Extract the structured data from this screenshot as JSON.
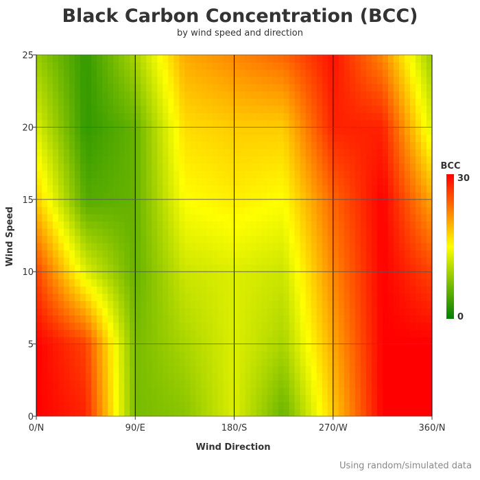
{
  "title": "Black Carbon Concentration (BCC)",
  "subtitle": "by wind speed and direction",
  "footnote": "Using random/simulated data",
  "chart_data": {
    "type": "heatmap",
    "title": "Black Carbon Concentration (BCC)",
    "subtitle": "by wind speed and direction",
    "xlabel": "Wind Direction",
    "ylabel": "Wind Speed",
    "xlim": [
      0,
      360
    ],
    "ylim": [
      0,
      25
    ],
    "x_ticks": [
      0,
      90,
      180,
      270,
      360
    ],
    "x_tick_labels": [
      "0/N",
      "90/E",
      "180/S",
      "270/W",
      "360/N"
    ],
    "y_ticks": [
      0,
      5,
      10,
      15,
      20,
      25
    ],
    "y_tick_labels": [
      "0",
      "5",
      "10",
      "15",
      "20",
      "25"
    ],
    "grid": true,
    "colorbar": {
      "title": "BCC",
      "min": 0,
      "max": 30,
      "tick_labels": [
        "0",
        "30"
      ],
      "colors": [
        "#008000",
        "#ffff00",
        "#ff0000"
      ]
    },
    "value_range": [
      0,
      30
    ],
    "samples": {
      "x": [
        0,
        45,
        90,
        135,
        180,
        225,
        270,
        315,
        360
      ],
      "y": [
        0,
        5,
        10,
        15,
        20,
        25
      ],
      "z": [
        [
          30,
          28,
          7,
          8,
          13,
          6,
          18,
          30,
          30
        ],
        [
          30,
          26,
          7,
          10,
          13,
          10,
          20,
          30,
          30
        ],
        [
          26,
          13,
          6,
          12,
          13,
          12,
          22,
          30,
          26
        ],
        [
          18,
          5,
          6,
          15,
          16,
          15,
          24,
          30,
          20
        ],
        [
          13,
          3,
          6,
          17,
          18,
          18,
          28,
          28,
          13
        ],
        [
          9,
          3,
          10,
          20,
          22,
          24,
          29,
          22,
          9
        ]
      ]
    }
  }
}
